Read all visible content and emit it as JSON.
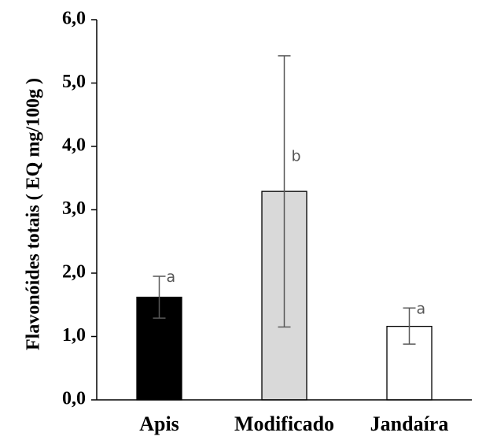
{
  "chart_data": {
    "type": "bar",
    "title": "",
    "xlabel": "",
    "ylabel": "Flavonóides totais ( EQ mg/100g )",
    "ylim": [
      0,
      6
    ],
    "yticks": [
      "0,0",
      "1,0",
      "2,0",
      "3,0",
      "4,0",
      "5,0",
      "6,0"
    ],
    "categories": [
      "Apis",
      "Modificado",
      "Jandaíra"
    ],
    "values": [
      1.62,
      3.29,
      1.16
    ],
    "error_low": [
      1.29,
      1.15,
      0.88
    ],
    "error_high": [
      1.95,
      5.43,
      1.45
    ],
    "significance": [
      "a",
      "b",
      "a"
    ],
    "colors": [
      "#000000",
      "#d9d9d9",
      "#ffffff"
    ],
    "grid": false,
    "legend": "none"
  }
}
